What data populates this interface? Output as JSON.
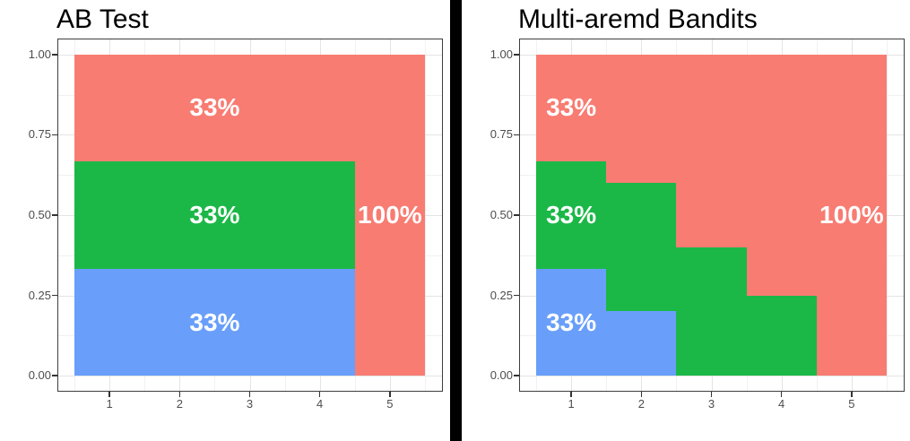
{
  "figure": {
    "background": "#FFFFFF",
    "divider_color": "#000000"
  },
  "palette": {
    "red": "#F87C72",
    "green": "#1BB847",
    "blue": "#699FFA",
    "label_text": "#FFFFFF",
    "axis_text": "#4D4D4D",
    "tick_mark": "#333333",
    "title_text": "#000000",
    "panel_border": "#3E3E3E",
    "grid_major": "#E4E4E4",
    "grid_minor": "#F1F1F1"
  },
  "chart_data": [
    {
      "type": "area",
      "title": "AB Test",
      "legend": "none",
      "grid": true,
      "x_domain": [
        0.25,
        5.75
      ],
      "y_domain": [
        -0.05,
        1.05
      ],
      "x_ticks": [
        1,
        2,
        3,
        4,
        5
      ],
      "x_tick_labels": [
        "1",
        "2",
        "3",
        "4",
        "5"
      ],
      "y_ticks": [
        1.0,
        0.75,
        0.5,
        0.25,
        0.0
      ],
      "y_tick_labels": [
        "1.00",
        "0.75",
        "0.50",
        "0.25",
        "0.00"
      ],
      "x_minor": [
        0.5,
        1.5,
        2.5,
        3.5,
        4.5,
        5.5
      ],
      "y_minor": [
        0.125,
        0.375,
        0.625,
        0.875
      ],
      "rects": [
        {
          "series": "blue",
          "x0": 0.5,
          "x1": 4.5,
          "y0": 0.0,
          "y1": 0.3333
        },
        {
          "series": "green",
          "x0": 0.5,
          "x1": 4.5,
          "y0": 0.3333,
          "y1": 0.6667
        },
        {
          "series": "red",
          "x0": 0.5,
          "x1": 4.5,
          "y0": 0.6667,
          "y1": 1.0
        },
        {
          "series": "red",
          "x0": 4.5,
          "x1": 5.5,
          "y0": 0.0,
          "y1": 1.0
        }
      ],
      "labels": [
        {
          "text": "33%",
          "x": 2.5,
          "y": 0.835
        },
        {
          "text": "33%",
          "x": 2.5,
          "y": 0.5
        },
        {
          "text": "33%",
          "x": 2.5,
          "y": 0.165
        },
        {
          "text": "100%",
          "x": 5.0,
          "y": 0.5
        }
      ]
    },
    {
      "type": "area",
      "title": "Multi-aremd Bandits",
      "legend": "none",
      "grid": true,
      "x_domain": [
        0.25,
        5.75
      ],
      "y_domain": [
        -0.05,
        1.05
      ],
      "x_ticks": [
        1,
        2,
        3,
        4,
        5
      ],
      "x_tick_labels": [
        "1",
        "2",
        "3",
        "4",
        "5"
      ],
      "y_ticks": [
        1.0,
        0.75,
        0.5,
        0.25,
        0.0
      ],
      "y_tick_labels": [
        "1.00",
        "0.75",
        "0.50",
        "0.25",
        "0.00"
      ],
      "x_minor": [
        0.5,
        1.5,
        2.5,
        3.5,
        4.5,
        5.5
      ],
      "y_minor": [
        0.125,
        0.375,
        0.625,
        0.875
      ],
      "rects": [
        {
          "series": "blue",
          "x0": 0.5,
          "x1": 1.5,
          "y0": 0.0,
          "y1": 0.3333
        },
        {
          "series": "blue",
          "x0": 1.5,
          "x1": 2.5,
          "y0": 0.0,
          "y1": 0.2
        },
        {
          "series": "green",
          "x0": 0.5,
          "x1": 1.5,
          "y0": 0.3333,
          "y1": 0.6667
        },
        {
          "series": "green",
          "x0": 1.5,
          "x1": 2.5,
          "y0": 0.2,
          "y1": 0.6
        },
        {
          "series": "green",
          "x0": 2.5,
          "x1": 3.5,
          "y0": 0.0,
          "y1": 0.4
        },
        {
          "series": "green",
          "x0": 3.5,
          "x1": 4.5,
          "y0": 0.0,
          "y1": 0.25
        },
        {
          "series": "red",
          "x0": 0.5,
          "x1": 1.5,
          "y0": 0.6667,
          "y1": 1.0
        },
        {
          "series": "red",
          "x0": 1.5,
          "x1": 2.5,
          "y0": 0.6,
          "y1": 1.0
        },
        {
          "series": "red",
          "x0": 2.5,
          "x1": 3.5,
          "y0": 0.4,
          "y1": 1.0
        },
        {
          "series": "red",
          "x0": 3.5,
          "x1": 4.5,
          "y0": 0.25,
          "y1": 1.0
        },
        {
          "series": "red",
          "x0": 4.5,
          "x1": 5.5,
          "y0": 0.0,
          "y1": 1.0
        }
      ],
      "labels": [
        {
          "text": "33%",
          "x": 1.0,
          "y": 0.835
        },
        {
          "text": "33%",
          "x": 1.0,
          "y": 0.5
        },
        {
          "text": "33%",
          "x": 1.0,
          "y": 0.165
        },
        {
          "text": "100%",
          "x": 5.0,
          "y": 0.5
        }
      ]
    }
  ]
}
